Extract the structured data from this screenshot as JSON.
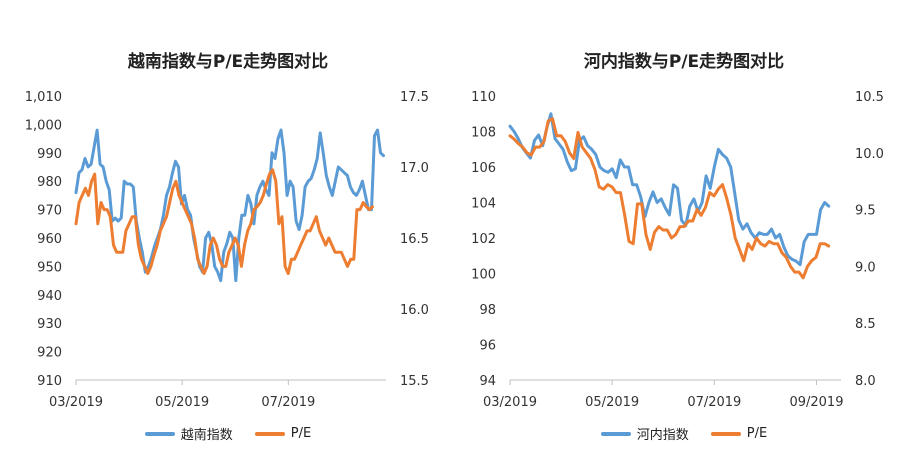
{
  "colors": {
    "index": "#5B9BD5",
    "pe": "#ED7D31",
    "axis": "#BFBFBF"
  },
  "chart_data": [
    {
      "type": "line",
      "title": "越南指数与P/E走势图对比",
      "x_ticks": [
        "03/2019",
        "05/2019",
        "07/2019"
      ],
      "y_left": {
        "ticks": [
          "910",
          "920",
          "930",
          "940",
          "950",
          "960",
          "970",
          "980",
          "990",
          "1,000",
          "1,010"
        ],
        "lim": [
          910,
          1010
        ]
      },
      "y_right": {
        "ticks": [
          "15.5",
          "16.0",
          "16.5",
          "17.0",
          "17.5"
        ],
        "lim": [
          15.5,
          17.5
        ]
      },
      "x_range": [
        0,
        146
      ],
      "x_tick_positions": [
        0,
        50,
        100
      ],
      "series": [
        {
          "name": "越南指数",
          "axis": "left",
          "values": [
            976,
            983,
            984,
            988,
            985,
            986,
            992,
            998,
            986,
            985,
            980,
            977,
            966,
            967,
            966,
            967,
            980,
            979,
            979,
            978,
            966,
            960,
            955,
            948,
            950,
            953,
            957,
            960,
            963,
            968,
            975,
            978,
            983,
            987,
            985,
            972,
            975,
            970,
            968,
            960,
            955,
            950,
            948,
            960,
            962,
            958,
            950,
            948,
            945,
            955,
            958,
            962,
            960,
            945,
            960,
            968,
            968,
            975,
            972,
            965,
            975,
            978,
            980,
            977,
            975,
            990,
            988,
            995,
            998,
            990,
            975,
            980,
            978,
            966,
            963,
            968,
            978,
            980,
            981,
            984,
            988,
            997,
            990,
            982,
            978,
            975,
            980,
            985,
            984,
            983,
            982,
            978,
            976,
            975,
            977,
            980,
            975,
            970,
            970,
            996,
            998,
            990,
            989
          ],
          "x_step": 1.42
        },
        {
          "name": "P/E",
          "axis": "right",
          "values": [
            16.6,
            16.75,
            16.8,
            16.85,
            16.8,
            16.9,
            16.95,
            16.6,
            16.75,
            16.7,
            16.7,
            16.65,
            16.45,
            16.4,
            16.4,
            16.4,
            16.55,
            16.6,
            16.65,
            16.65,
            16.45,
            16.35,
            16.3,
            16.25,
            16.3,
            16.38,
            16.45,
            16.55,
            16.6,
            16.65,
            16.75,
            16.85,
            16.9,
            16.8,
            16.75,
            16.7,
            16.65,
            16.6,
            16.5,
            16.35,
            16.3,
            16.25,
            16.3,
            16.45,
            16.5,
            16.45,
            16.35,
            16.3,
            16.3,
            16.4,
            16.45,
            16.5,
            16.45,
            16.3,
            16.45,
            16.55,
            16.6,
            16.7,
            16.72,
            16.75,
            16.8,
            16.88,
            16.95,
            16.98,
            16.9,
            16.6,
            16.65,
            16.3,
            16.25,
            16.35,
            16.35,
            16.4,
            16.45,
            16.5,
            16.55,
            16.55,
            16.6,
            16.65,
            16.55,
            16.5,
            16.45,
            16.5,
            16.45,
            16.4,
            16.4,
            16.4,
            16.35,
            16.3,
            16.35,
            16.35,
            16.7,
            16.7,
            16.75,
            16.72,
            16.7,
            16.72
          ],
          "x_step": 1.47
        }
      ],
      "legend": [
        "越南指数",
        "P/E"
      ],
      "legend_position": "bottom"
    },
    {
      "type": "line",
      "title": "河内指数与P/E走势图对比",
      "x_ticks": [
        "03/2019",
        "05/2019",
        "07/2019",
        "09/2019"
      ],
      "y_left": {
        "ticks": [
          "94",
          "96",
          "98",
          "100",
          "102",
          "104",
          "106",
          "108",
          "110"
        ],
        "lim": [
          94,
          110
        ]
      },
      "y_right": {
        "ticks": [
          "8.0",
          "8.5",
          "9.0",
          "9.5",
          "10.0",
          "10.5"
        ],
        "lim": [
          8.0,
          10.5
        ]
      },
      "x_range": [
        0,
        162
      ],
      "x_tick_positions": [
        0,
        50,
        100,
        150
      ],
      "series": [
        {
          "name": "河内指数",
          "axis": "left",
          "values": [
            108.3,
            108.0,
            107.6,
            107.1,
            106.8,
            106.5,
            107.5,
            107.8,
            107.2,
            108.2,
            109.0,
            107.6,
            107.3,
            107.0,
            106.3,
            105.8,
            105.9,
            107.5,
            107.7,
            107.2,
            107.0,
            106.7,
            106.0,
            105.8,
            105.7,
            105.9,
            105.4,
            106.4,
            106.0,
            106.0,
            105.0,
            105.0,
            104.3,
            103.2,
            104.0,
            104.6,
            104.0,
            104.2,
            103.7,
            103.3,
            105.0,
            104.8,
            103.0,
            102.7,
            103.8,
            104.2,
            103.5,
            104.0,
            105.5,
            104.8,
            106.0,
            107.0,
            106.7,
            106.5,
            106.0,
            104.5,
            103.0,
            102.5,
            102.8,
            102.3,
            102.0,
            102.3,
            102.2,
            102.2,
            102.5,
            102.0,
            102.2,
            101.5,
            101.0,
            100.8,
            100.7,
            100.5,
            101.8,
            102.2,
            102.2,
            102.2,
            103.6,
            104.0,
            103.8
          ],
          "x_step": 2.0
        },
        {
          "name": "P/E",
          "axis": "right",
          "values": [
            10.15,
            10.12,
            10.08,
            10.05,
            10.0,
            9.98,
            10.05,
            10.05,
            10.1,
            10.28,
            10.3,
            10.15,
            10.15,
            10.1,
            10.0,
            9.95,
            10.18,
            10.05,
            10.0,
            9.95,
            9.85,
            9.7,
            9.68,
            9.72,
            9.7,
            9.65,
            9.65,
            9.45,
            9.22,
            9.2,
            9.55,
            9.55,
            9.28,
            9.15,
            9.3,
            9.35,
            9.32,
            9.32,
            9.25,
            9.28,
            9.35,
            9.35,
            9.4,
            9.4,
            9.5,
            9.45,
            9.52,
            9.65,
            9.62,
            9.68,
            9.72,
            9.6,
            9.45,
            9.25,
            9.15,
            9.05,
            9.2,
            9.15,
            9.25,
            9.2,
            9.18,
            9.22,
            9.2,
            9.2,
            9.12,
            9.08,
            9.0,
            8.95,
            8.95,
            8.9,
            9.0,
            9.05,
            9.08,
            9.2,
            9.2,
            9.18
          ],
          "x_step": 2.08
        }
      ],
      "legend": [
        "河内指数",
        "P/E"
      ],
      "legend_position": "bottom"
    }
  ]
}
